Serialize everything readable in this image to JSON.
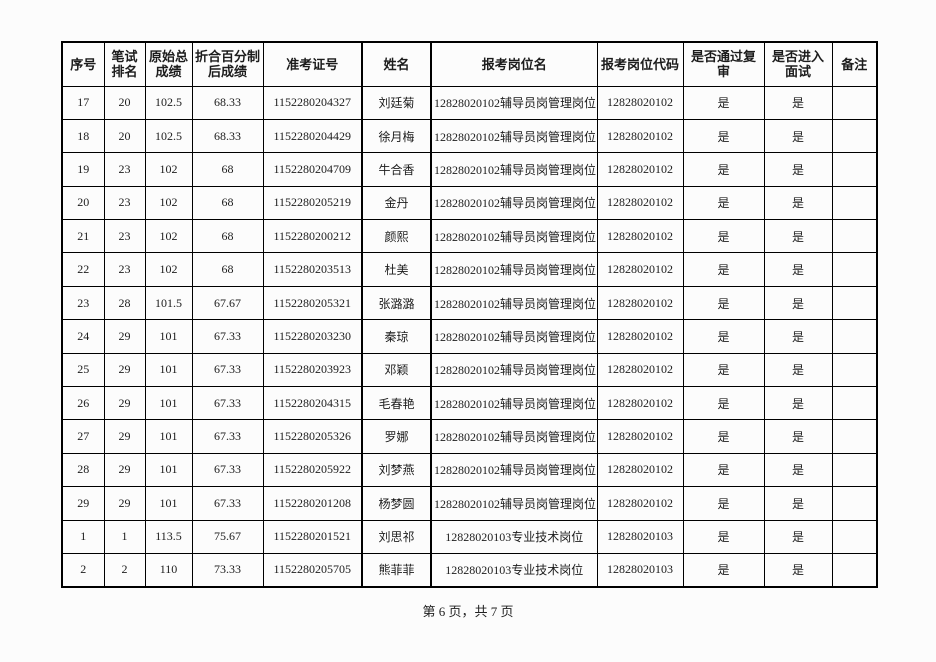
{
  "page": {
    "footer_text": "第 6 页，共 7 页"
  },
  "table": {
    "border_color": "#000000",
    "text_color": "#1c1c1c",
    "columns": [
      "序号",
      "笔试排名",
      "原始总成绩",
      "折合百分制后成绩",
      "准考证号",
      "姓名",
      "报考岗位名",
      "报考岗位代码",
      "是否通过复审",
      "是否进入面试",
      "备注"
    ],
    "rows": [
      [
        "17",
        "20",
        "102.5",
        "68.33",
        "1152280204327",
        "刘廷菊",
        "12828020102辅导员岗管理岗位",
        "12828020102",
        "是",
        "是",
        ""
      ],
      [
        "18",
        "20",
        "102.5",
        "68.33",
        "1152280204429",
        "徐月梅",
        "12828020102辅导员岗管理岗位",
        "12828020102",
        "是",
        "是",
        ""
      ],
      [
        "19",
        "23",
        "102",
        "68",
        "1152280204709",
        "牛合香",
        "12828020102辅导员岗管理岗位",
        "12828020102",
        "是",
        "是",
        ""
      ],
      [
        "20",
        "23",
        "102",
        "68",
        "1152280205219",
        "金丹",
        "12828020102辅导员岗管理岗位",
        "12828020102",
        "是",
        "是",
        ""
      ],
      [
        "21",
        "23",
        "102",
        "68",
        "1152280200212",
        "颜熙",
        "12828020102辅导员岗管理岗位",
        "12828020102",
        "是",
        "是",
        ""
      ],
      [
        "22",
        "23",
        "102",
        "68",
        "1152280203513",
        "杜美",
        "12828020102辅导员岗管理岗位",
        "12828020102",
        "是",
        "是",
        ""
      ],
      [
        "23",
        "28",
        "101.5",
        "67.67",
        "1152280205321",
        "张潞潞",
        "12828020102辅导员岗管理岗位",
        "12828020102",
        "是",
        "是",
        ""
      ],
      [
        "24",
        "29",
        "101",
        "67.33",
        "1152280203230",
        "秦琼",
        "12828020102辅导员岗管理岗位",
        "12828020102",
        "是",
        "是",
        ""
      ],
      [
        "25",
        "29",
        "101",
        "67.33",
        "1152280203923",
        "邓颖",
        "12828020102辅导员岗管理岗位",
        "12828020102",
        "是",
        "是",
        ""
      ],
      [
        "26",
        "29",
        "101",
        "67.33",
        "1152280204315",
        "毛春艳",
        "12828020102辅导员岗管理岗位",
        "12828020102",
        "是",
        "是",
        ""
      ],
      [
        "27",
        "29",
        "101",
        "67.33",
        "1152280205326",
        "罗娜",
        "12828020102辅导员岗管理岗位",
        "12828020102",
        "是",
        "是",
        ""
      ],
      [
        "28",
        "29",
        "101",
        "67.33",
        "1152280205922",
        "刘梦燕",
        "12828020102辅导员岗管理岗位",
        "12828020102",
        "是",
        "是",
        ""
      ],
      [
        "29",
        "29",
        "101",
        "67.33",
        "1152280201208",
        "杨梦圆",
        "12828020102辅导员岗管理岗位",
        "12828020102",
        "是",
        "是",
        ""
      ],
      [
        "1",
        "1",
        "113.5",
        "75.67",
        "1152280201521",
        "刘思祁",
        "12828020103专业技术岗位",
        "12828020103",
        "是",
        "是",
        ""
      ],
      [
        "2",
        "2",
        "110",
        "73.33",
        "1152280205705",
        "熊菲菲",
        "12828020103专业技术岗位",
        "12828020103",
        "是",
        "是",
        ""
      ]
    ]
  }
}
